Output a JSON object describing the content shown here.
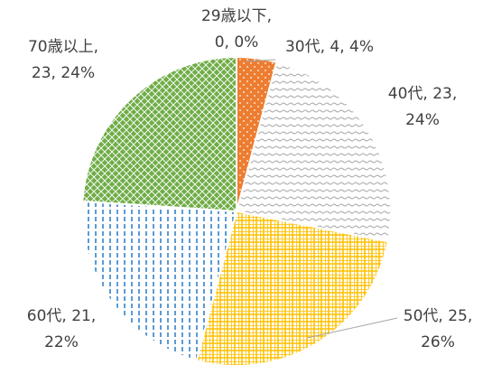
{
  "chart_data": {
    "type": "pie",
    "categories": [
      "29歳以下",
      "30代",
      "40代",
      "50代",
      "60代",
      "70歳以上"
    ],
    "values": [
      0,
      4,
      23,
      25,
      21,
      23
    ],
    "value_labels": [
      "29歳以下,\n0, 0%",
      "30代, 4, 4%",
      "40代, 23,\n24%",
      "50代, 25,\n26%",
      "60代, 21,\n22%",
      "70歳以上,\n23, 24%"
    ],
    "colors": [
      "#4472c4",
      "#ed7d31",
      "#a5a5a5",
      "#ffc000",
      "#5b9bd5",
      "#70ad47"
    ]
  }
}
